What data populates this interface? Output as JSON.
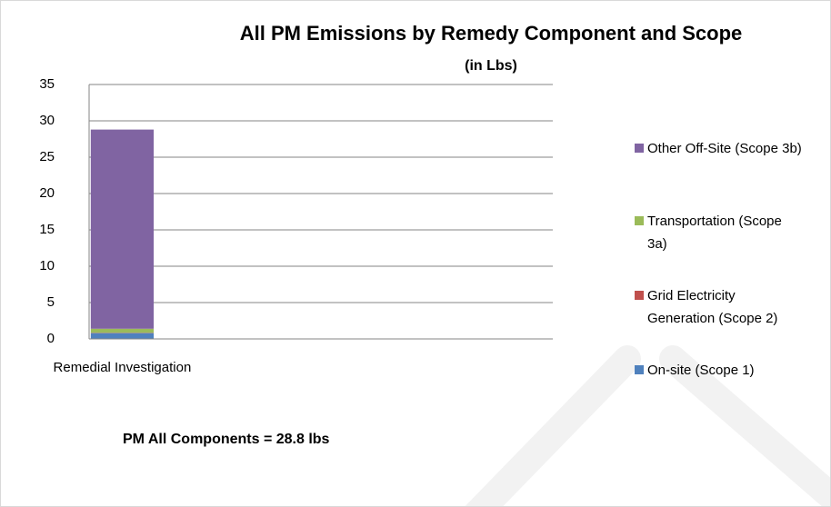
{
  "chart_data": {
    "type": "stacked_bar",
    "title": "All PM Emissions by Remedy Component and Scope",
    "subtitle": "(in Lbs)",
    "annotation": "PM All Components = 28.8 lbs",
    "categories": [
      "Remedial Investigation",
      null,
      null,
      null,
      null,
      null,
      null
    ],
    "series": [
      {
        "name": "On-site (Scope 1)",
        "color": "#4f81bd",
        "values": [
          0.8,
          null,
          null,
          null,
          null,
          null,
          null
        ]
      },
      {
        "name": "Grid Electricity Generation (Scope 2)",
        "color": "#c0504d",
        "values": [
          0.05,
          null,
          null,
          null,
          null,
          null,
          null
        ]
      },
      {
        "name": "Transportation (Scope 3a)",
        "color": "#9bbb59",
        "values": [
          0.55,
          null,
          null,
          null,
          null,
          null,
          null
        ]
      },
      {
        "name": "Other Off-Site (Scope 3b)",
        "color": "#8064a2",
        "values": [
          27.4,
          null,
          null,
          null,
          null,
          null,
          null
        ]
      }
    ],
    "ylim": [
      0,
      35
    ],
    "yticks": [
      0,
      5,
      10,
      15,
      20,
      25,
      30,
      35
    ],
    "grid": true,
    "legend": "right"
  }
}
